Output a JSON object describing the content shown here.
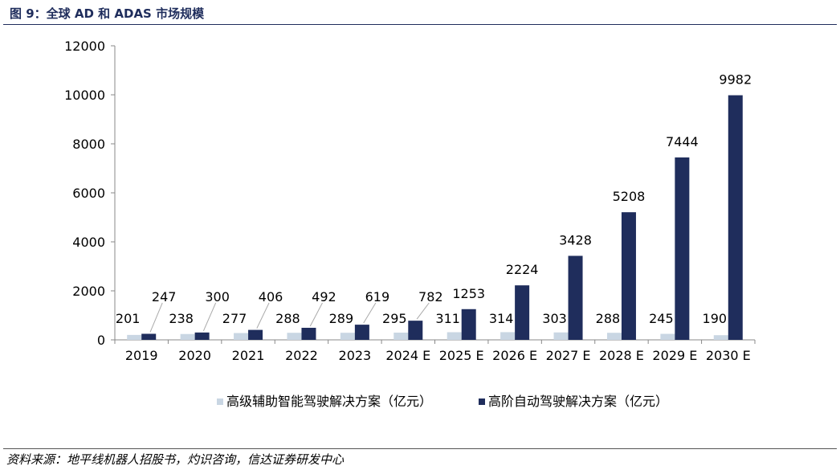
{
  "title": "图 9：全球 AD 和 ADAS 市场规模",
  "source": "资料来源：地平线机器人招股书，灼识咨询，信达证券研发中心",
  "colors": {
    "series1": "#c9d6e3",
    "series2": "#1f2d5c",
    "title": "#1f2d5c"
  },
  "chart_data": {
    "type": "bar",
    "categories": [
      "2019",
      "2020",
      "2021",
      "2022",
      "2023",
      "2024  E",
      "2025  E",
      "2026  E",
      "2027  E",
      "2028  E",
      "2029  E",
      "2030  E"
    ],
    "series": [
      {
        "name": "高级辅助智能驾驶解决方案（亿元）",
        "values": [
          201,
          238,
          277,
          288,
          289,
          295,
          311,
          314,
          303,
          288,
          245,
          190
        ]
      },
      {
        "name": "高阶自动驾驶解决方案（亿元）",
        "values": [
          247,
          300,
          406,
          492,
          619,
          782,
          1253,
          2224,
          3428,
          5208,
          7444,
          9982
        ]
      }
    ],
    "ylim": [
      0,
      12000
    ],
    "yticks": [
      0,
      2000,
      4000,
      6000,
      8000,
      10000,
      12000
    ],
    "grid": false,
    "legend": "bottom"
  }
}
